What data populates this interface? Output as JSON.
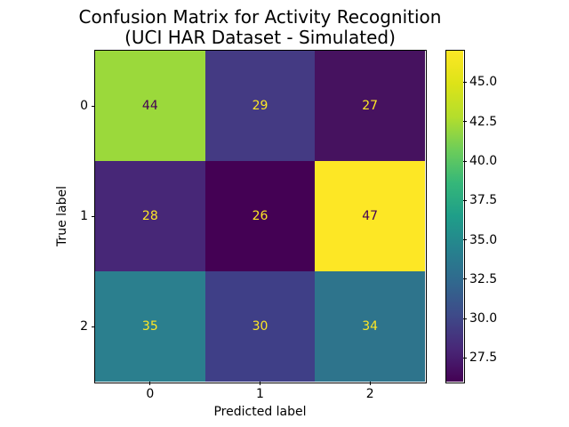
{
  "figure": {
    "background": "#ffffff",
    "text_color": "#000000"
  },
  "chart_data": {
    "type": "heatmap",
    "title": "Confusion Matrix for Activity Recognition\n(UCI HAR Dataset - Simulated)",
    "xlabel": "Predicted label",
    "ylabel": "True label",
    "x_tick_labels": [
      "0",
      "1",
      "2"
    ],
    "y_tick_labels": [
      "0",
      "1",
      "2"
    ],
    "matrix": [
      [
        44,
        29,
        27
      ],
      [
        28,
        26,
        47
      ],
      [
        35,
        30,
        34
      ]
    ],
    "colormap": "viridis",
    "vmin": 26,
    "vmax": 47,
    "colorbar_tick_values": [
      45.0,
      42.5,
      40.0,
      37.5,
      35.0,
      32.5,
      30.0,
      27.5
    ],
    "colorbar_tick_labels": [
      "45.0",
      "42.5",
      "40.0",
      "37.5",
      "35.0",
      "32.5",
      "30.0",
      "27.5"
    ],
    "cell_colors": [
      [
        "#9bd93b",
        "#443a83",
        "#46125f"
      ],
      [
        "#472777",
        "#440154",
        "#fde725"
      ],
      [
        "#2b7f8e",
        "#3f3f87",
        "#2e748c"
      ]
    ],
    "cell_text_colors": [
      [
        "#440154",
        "#fde725",
        "#fde725"
      ],
      [
        "#fde725",
        "#fde725",
        "#440154"
      ],
      [
        "#fde725",
        "#fde725",
        "#fde725"
      ]
    ],
    "colorbar_gradient": [
      "#440154",
      "#482878",
      "#3e4a89",
      "#31688e",
      "#26828e",
      "#1f9e89",
      "#35b779",
      "#6dcd59",
      "#b4de2c",
      "#dde318",
      "#fde725"
    ],
    "axis_color": "#000000",
    "legend": "colorbar-right",
    "grid": false
  }
}
